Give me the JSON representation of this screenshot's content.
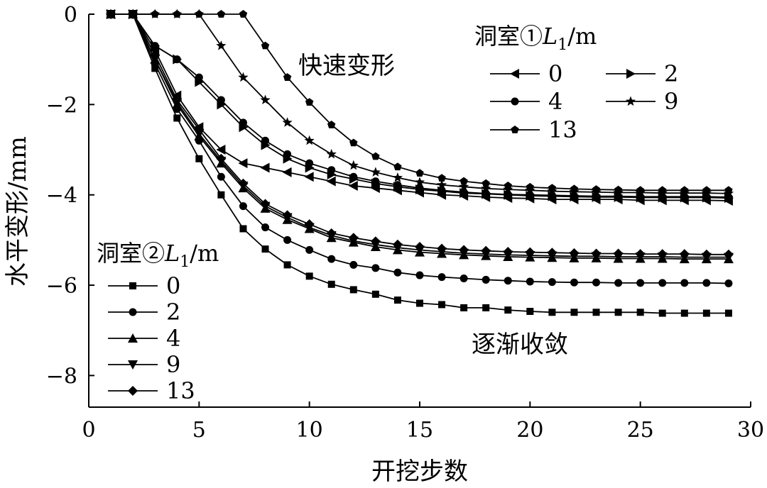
{
  "chart_data": {
    "type": "line",
    "xlabel": "开挖步数",
    "ylabel": "水平变形/mm",
    "xlim": [
      0,
      30
    ],
    "ylim": [
      -8.7,
      0
    ],
    "xticks": [
      0,
      5,
      10,
      15,
      20,
      25,
      30
    ],
    "yticks": [
      0,
      -2,
      -4,
      -6,
      -8
    ],
    "ytick_labels": [
      "0",
      "−2",
      "−4",
      "−6",
      "−8"
    ],
    "grid": false,
    "x": [
      1,
      2,
      3,
      4,
      5,
      6,
      7,
      8,
      9,
      10,
      11,
      12,
      13,
      14,
      15,
      16,
      17,
      18,
      19,
      20,
      21,
      22,
      23,
      24,
      25,
      26,
      27,
      28,
      29
    ],
    "annotations": [
      "快速变形",
      "逐渐收敛"
    ],
    "legend_groups": [
      {
        "title_prefix": "洞室①",
        "title_var": "L",
        "title_sub": "1",
        "title_suffix": "/m",
        "placement": "top-right"
      },
      {
        "title_prefix": "洞室②",
        "title_var": "L",
        "title_sub": "1",
        "title_suffix": "/m",
        "placement": "left-middle"
      }
    ],
    "series": [
      {
        "group": 0,
        "name": "0",
        "marker": "triangle-left",
        "values": [
          0,
          0,
          -0.8,
          -1.8,
          -2.5,
          -3.0,
          -3.3,
          -3.4,
          -3.5,
          -3.6,
          -3.7,
          -3.8,
          -3.85,
          -3.9,
          -3.95,
          -4.0,
          -4.02,
          -4.05,
          -4.07,
          -4.08,
          -4.1,
          -4.1,
          -4.1,
          -4.1,
          -4.12,
          -4.12,
          -4.12,
          -4.12,
          -4.13
        ]
      },
      {
        "group": 0,
        "name": "2",
        "marker": "triangle-right",
        "values": [
          0,
          0,
          -0.7,
          -1.0,
          -1.5,
          -2.0,
          -2.5,
          -2.9,
          -3.2,
          -3.4,
          -3.55,
          -3.65,
          -3.75,
          -3.82,
          -3.88,
          -3.92,
          -3.96,
          -3.98,
          -4.0,
          -4.02,
          -4.03,
          -4.04,
          -4.05,
          -4.05,
          -4.06,
          -4.06,
          -4.06,
          -4.06,
          -4.07
        ]
      },
      {
        "group": 0,
        "name": "4",
        "marker": "circle",
        "values": [
          0,
          0,
          -0.7,
          -1.0,
          -1.4,
          -1.9,
          -2.4,
          -2.8,
          -3.1,
          -3.3,
          -3.45,
          -3.6,
          -3.7,
          -3.78,
          -3.85,
          -3.9,
          -3.94,
          -3.97,
          -3.99,
          -4.0,
          -4.01,
          -4.02,
          -4.03,
          -4.03,
          -4.04,
          -4.04,
          -4.04,
          -4.04,
          -4.05
        ]
      },
      {
        "group": 0,
        "name": "9",
        "marker": "star",
        "values": [
          0,
          0,
          0,
          0,
          0,
          -0.7,
          -1.4,
          -1.9,
          -2.4,
          -2.8,
          -3.1,
          -3.35,
          -3.5,
          -3.62,
          -3.72,
          -3.78,
          -3.82,
          -3.86,
          -3.88,
          -3.9,
          -3.92,
          -3.93,
          -3.94,
          -3.95,
          -3.95,
          -3.96,
          -3.96,
          -3.96,
          -3.97
        ]
      },
      {
        "group": 0,
        "name": "13",
        "marker": "pentagon",
        "values": [
          0,
          0,
          0,
          0,
          0,
          0,
          0,
          -0.7,
          -1.4,
          -1.95,
          -2.45,
          -2.85,
          -3.15,
          -3.38,
          -3.52,
          -3.63,
          -3.7,
          -3.75,
          -3.8,
          -3.83,
          -3.85,
          -3.87,
          -3.88,
          -3.89,
          -3.9,
          -3.9,
          -3.9,
          -3.9,
          -3.9
        ]
      },
      {
        "group": 1,
        "name": "0",
        "marker": "square",
        "values": [
          0,
          0,
          -1.2,
          -2.3,
          -3.2,
          -4.0,
          -4.75,
          -5.2,
          -5.55,
          -5.8,
          -5.98,
          -6.1,
          -6.2,
          -6.33,
          -6.4,
          -6.43,
          -6.5,
          -6.5,
          -6.55,
          -6.58,
          -6.6,
          -6.6,
          -6.6,
          -6.6,
          -6.6,
          -6.62,
          -6.62,
          -6.62,
          -6.62
        ]
      },
      {
        "group": 1,
        "name": "2",
        "marker": "circle",
        "values": [
          0,
          0,
          -1.1,
          -2.1,
          -2.8,
          -3.6,
          -4.25,
          -4.72,
          -5.0,
          -5.22,
          -5.42,
          -5.55,
          -5.62,
          -5.72,
          -5.78,
          -5.82,
          -5.85,
          -5.88,
          -5.9,
          -5.92,
          -5.93,
          -5.94,
          -5.94,
          -5.95,
          -5.95,
          -5.95,
          -5.95,
          -5.95,
          -5.96
        ]
      },
      {
        "group": 1,
        "name": "4",
        "marker": "triangle-up",
        "values": [
          0,
          0,
          -1.0,
          -2.0,
          -2.7,
          -3.3,
          -3.85,
          -4.3,
          -4.55,
          -4.75,
          -4.95,
          -5.05,
          -5.15,
          -5.22,
          -5.27,
          -5.3,
          -5.33,
          -5.35,
          -5.37,
          -5.38,
          -5.39,
          -5.4,
          -5.4,
          -5.41,
          -5.41,
          -5.41,
          -5.42,
          -5.42,
          -5.42
        ]
      },
      {
        "group": 1,
        "name": "9",
        "marker": "triangle-down",
        "values": [
          0,
          0,
          -1.0,
          -1.95,
          -2.65,
          -3.25,
          -3.8,
          -4.25,
          -4.5,
          -4.72,
          -4.9,
          -5.02,
          -5.1,
          -5.17,
          -5.22,
          -5.26,
          -5.29,
          -5.31,
          -5.33,
          -5.34,
          -5.35,
          -5.36,
          -5.36,
          -5.37,
          -5.37,
          -5.37,
          -5.38,
          -5.38,
          -5.38
        ]
      },
      {
        "group": 1,
        "name": "13",
        "marker": "diamond",
        "values": [
          0,
          0,
          -0.9,
          -1.9,
          -2.55,
          -3.2,
          -3.75,
          -4.2,
          -4.45,
          -4.65,
          -4.85,
          -4.95,
          -5.03,
          -5.1,
          -5.15,
          -5.19,
          -5.22,
          -5.24,
          -5.26,
          -5.27,
          -5.28,
          -5.29,
          -5.3,
          -5.3,
          -5.31,
          -5.31,
          -5.31,
          -5.32,
          -5.32
        ]
      }
    ]
  }
}
